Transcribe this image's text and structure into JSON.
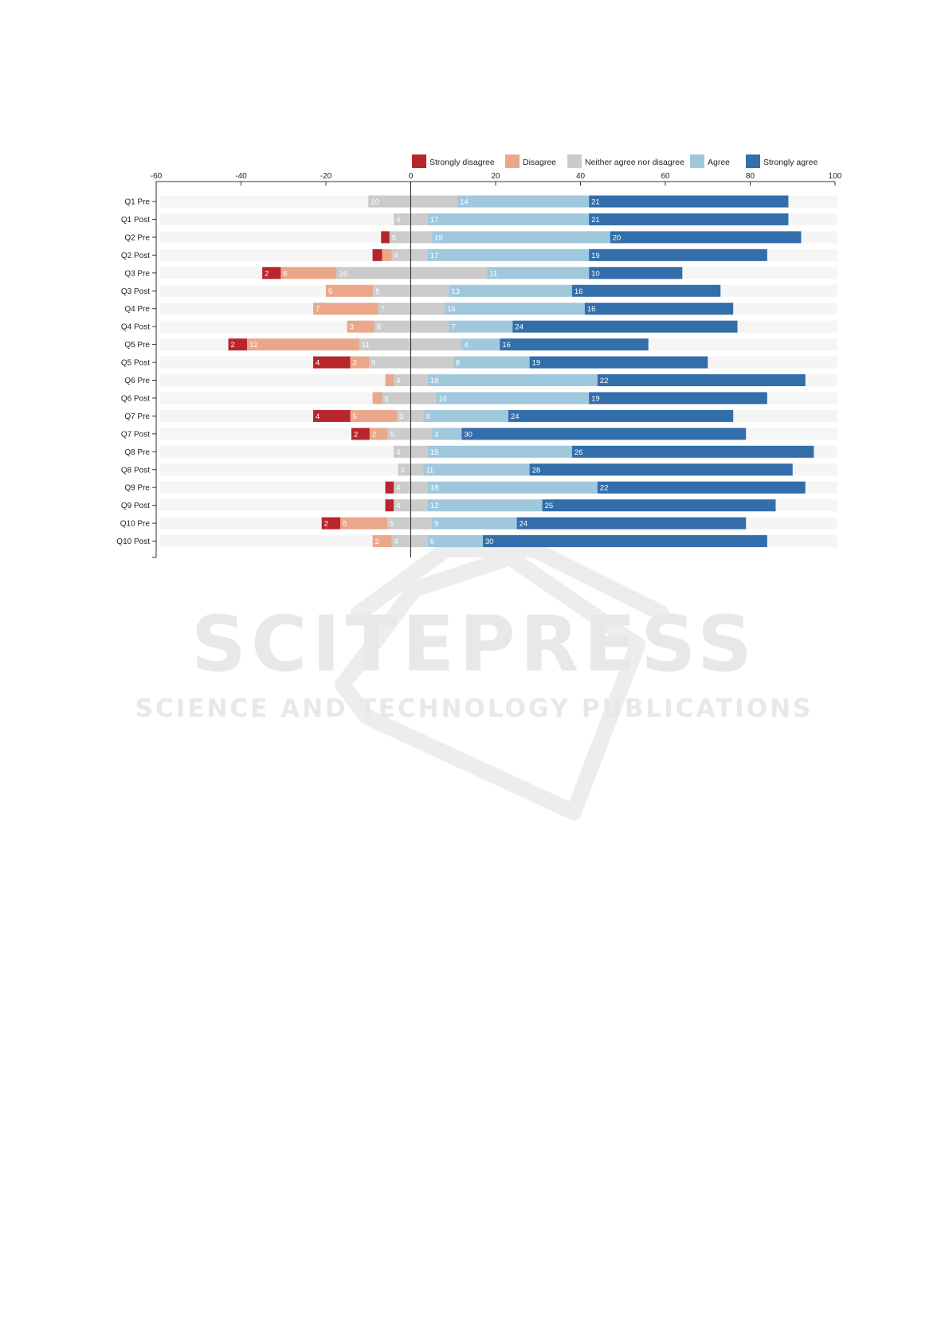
{
  "chart_data": {
    "type": "bar",
    "stacked": "diverging",
    "xlim": [
      -60,
      100
    ],
    "x_ticks": [
      -60,
      -40,
      -20,
      0,
      20,
      40,
      60,
      80,
      100
    ],
    "legend_position": "top-right",
    "categories": [
      "Q1 Pre",
      "Q1 Post",
      "Q2 Pre",
      "Q2 Post",
      "Q3 Pre",
      "Q3 Post",
      "Q4 Pre",
      "Q4 Post",
      "Q5 Pre",
      "Q5 Post",
      "Q6 Pre",
      "Q6 Post",
      "Q7 Pre",
      "Q7 Post",
      "Q8 Pre",
      "Q8 Post",
      "Q9 Pre",
      "Q9 Post",
      "Q10 Pre",
      "Q10 Post"
    ],
    "series": [
      {
        "name": "Strongly disagree",
        "color": "#b8252b",
        "values": [
          0,
          0,
          1,
          1,
          2,
          0,
          0,
          0,
          2,
          4,
          0,
          0,
          4,
          2,
          0,
          0,
          1,
          1,
          2,
          0
        ]
      },
      {
        "name": "Disagree",
        "color": "#eba78a",
        "values": [
          0,
          0,
          0,
          1,
          6,
          5,
          7,
          3,
          12,
          2,
          1,
          1,
          5,
          2,
          0,
          0,
          0,
          0,
          5,
          2
        ]
      },
      {
        "name": "Neither agree nor disagree",
        "color": "#cbcbcb",
        "values": [
          10,
          4,
          5,
          4,
          16,
          8,
          7,
          8,
          11,
          9,
          4,
          6,
          3,
          5,
          4,
          3,
          4,
          4,
          5,
          4
        ]
      },
      {
        "name": "Agree",
        "color": "#9fc8dc",
        "values": [
          14,
          17,
          19,
          17,
          11,
          13,
          15,
          7,
          4,
          8,
          18,
          16,
          9,
          3,
          15,
          11,
          18,
          12,
          9,
          6
        ]
      },
      {
        "name": "Strongly agree",
        "color": "#326eaa",
        "values": [
          21,
          21,
          20,
          19,
          10,
          16,
          16,
          24,
          16,
          19,
          22,
          19,
          24,
          30,
          26,
          28,
          22,
          25,
          24,
          30
        ]
      }
    ],
    "labels": [
      [
        null,
        null,
        "10",
        "14",
        "21"
      ],
      [
        null,
        null,
        "4",
        "17",
        "21"
      ],
      [
        null,
        null,
        "5",
        "19",
        "20"
      ],
      [
        null,
        null,
        "4",
        "17",
        "19"
      ],
      [
        "2",
        "6",
        "16",
        "11",
        "10"
      ],
      [
        null,
        "5",
        "8",
        "13",
        "16"
      ],
      [
        null,
        "7",
        "7",
        "15",
        "16"
      ],
      [
        null,
        "3",
        "8",
        "7",
        "24"
      ],
      [
        "2",
        "12",
        "11",
        "4",
        "16"
      ],
      [
        "4",
        "2",
        "9",
        "8",
        "19"
      ],
      [
        null,
        null,
        "4",
        "18",
        "22"
      ],
      [
        null,
        null,
        "6",
        "16",
        "19"
      ],
      [
        "4",
        "5",
        "3",
        "9",
        "24"
      ],
      [
        "2",
        "2",
        "5",
        "3",
        "30"
      ],
      [
        null,
        null,
        "4",
        "15",
        "26"
      ],
      [
        null,
        null,
        "3",
        "11",
        "28"
      ],
      [
        null,
        null,
        "4",
        "18",
        "22"
      ],
      [
        null,
        null,
        "4",
        "12",
        "25"
      ],
      [
        "2",
        "5",
        "5",
        "9",
        "24"
      ],
      [
        null,
        "2",
        "4",
        "6",
        "30"
      ]
    ],
    "ranges": [
      [
        -10,
        0,
        0,
        11,
        11,
        42,
        42,
        89
      ],
      [
        -4,
        0,
        0,
        4,
        4,
        42,
        42,
        89
      ],
      [
        -7,
        0,
        0,
        5,
        5,
        47,
        47,
        92
      ],
      [
        -9,
        0,
        0,
        4,
        4,
        42,
        42,
        84
      ],
      [
        -35,
        0,
        0,
        18,
        18,
        42,
        42,
        64
      ],
      [
        -20,
        0,
        0,
        9,
        9,
        38,
        38,
        73
      ],
      [
        -23,
        0,
        0,
        8,
        8,
        41,
        41,
        76
      ],
      [
        -15,
        0,
        0,
        9,
        9,
        24,
        24,
        77
      ],
      [
        -43,
        0,
        0,
        12,
        12,
        21,
        21,
        56
      ],
      [
        -23,
        0,
        0,
        10,
        10,
        28,
        28,
        70
      ],
      [
        -6,
        0,
        0,
        4,
        4,
        44,
        44,
        93
      ],
      [
        -9,
        0,
        0,
        6,
        6,
        42,
        42,
        84
      ],
      [
        -23,
        0,
        0,
        3,
        3,
        23,
        23,
        76
      ],
      [
        -14,
        0,
        0,
        5,
        5,
        12,
        12,
        79
      ],
      [
        -4,
        0,
        0,
        4,
        4,
        38,
        38,
        95
      ],
      [
        -3,
        0,
        0,
        3,
        3,
        28,
        28,
        90
      ],
      [
        -6,
        0,
        0,
        4,
        4,
        44,
        44,
        93
      ],
      [
        -6,
        0,
        0,
        4,
        4,
        31,
        31,
        86
      ],
      [
        -21,
        0,
        0,
        5,
        5,
        25,
        25,
        79
      ],
      [
        -9,
        0,
        0,
        4,
        4,
        17,
        17,
        84
      ]
    ]
  },
  "watermark": {
    "title": "SCITEPRESS",
    "subtitle": "SCIENCE AND TECHNOLOGY PUBLICATIONS"
  }
}
